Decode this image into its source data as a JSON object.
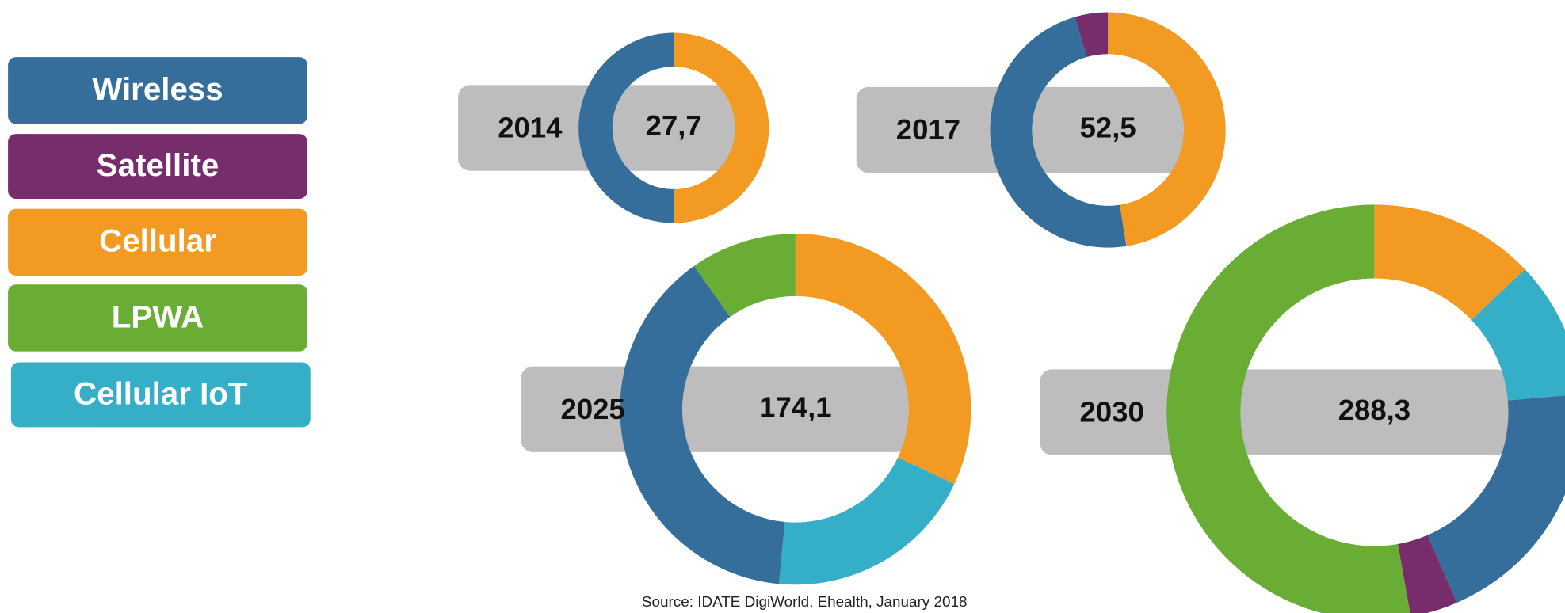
{
  "legend": [
    {
      "name": "Wireless",
      "color": "#356e9a"
    },
    {
      "name": "Satellite",
      "color": "#772d6b"
    },
    {
      "name": "Cellular",
      "color": "#f39a22"
    },
    {
      "name": "LPWA",
      "color": "#69ad35"
    },
    {
      "name": "Cellular IoT",
      "color": "#35aec8"
    }
  ],
  "chart_data": [
    {
      "type": "donut",
      "title": "2014",
      "values": [
        50,
        0,
        50,
        0,
        0
      ],
      "total": 27.7,
      "total_label": "27,7"
    },
    {
      "type": "donut",
      "title": "2017",
      "values": [
        48,
        4.5,
        47.5,
        0,
        0
      ],
      "total": 52.5,
      "total_label": "52,5"
    },
    {
      "type": "donut",
      "title": "2025",
      "values": [
        38.7,
        0,
        32,
        9.8,
        19.5
      ],
      "total": 174.1,
      "total_label": "174,1"
    },
    {
      "type": "donut",
      "title": "2030",
      "values": [
        19.9,
        3.7,
        12.9,
        52.8,
        10.7
      ],
      "total": 288.3,
      "total_label": "288,3"
    }
  ],
  "source": "Source: IDATE DigiWorld, Ehealth, January 2018"
}
